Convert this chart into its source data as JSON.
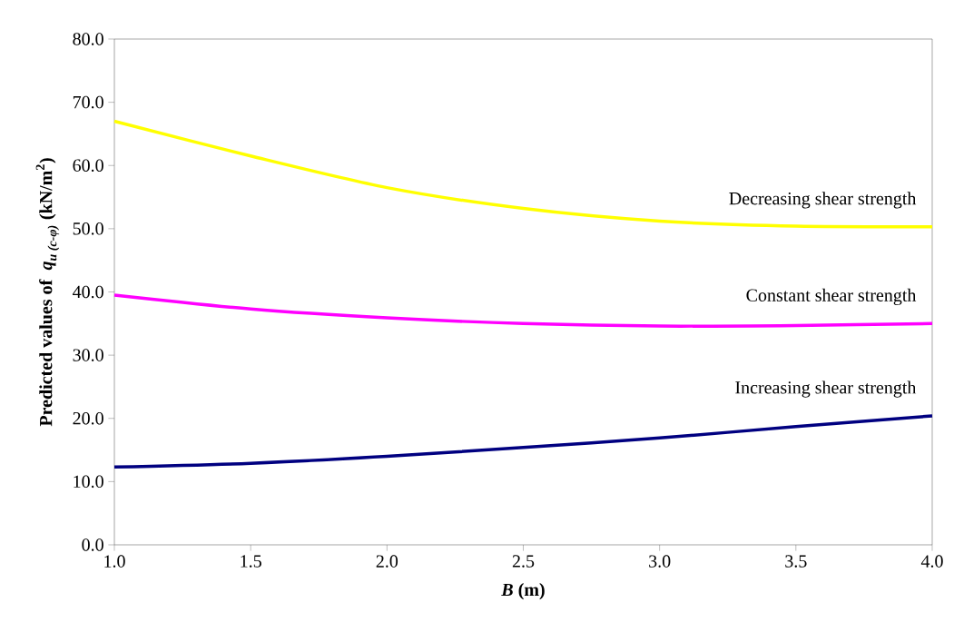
{
  "chart_data": {
    "type": "line",
    "xlabel": "*B* (m)",
    "ylabel": "\\text{Predicted values of }\\; \\text{\\itshape q}_{\\text{\\itshape u (c-φ)}}\\ \\text{(kN/m}^{\\text{2}}\\text{)}",
    "x": [
      1.0,
      1.5,
      2.0,
      2.5,
      3.0,
      3.5,
      4.0
    ],
    "series": [
      {
        "name": "Decreasing shear strength",
        "color": "#ffff00",
        "values": [
          67.0,
          61.5,
          56.5,
          53.2,
          51.2,
          50.4,
          50.3
        ]
      },
      {
        "name": "Constant shear strength",
        "color": "#ff00ff",
        "values": [
          39.5,
          37.3,
          35.9,
          35.0,
          34.6,
          34.7,
          35.0
        ]
      },
      {
        "name": "Increasing shear strength",
        "color": "#000080",
        "values": [
          12.3,
          12.9,
          14.0,
          15.4,
          16.9,
          18.7,
          20.4
        ]
      }
    ],
    "xlim": [
      1.0,
      4.0
    ],
    "ylim": [
      0,
      80
    ],
    "xticks": [
      {
        "value": 1.0,
        "label": "1.0"
      },
      {
        "value": 1.5,
        "label": "1.5"
      },
      {
        "value": 2.0,
        "label": "2.0"
      },
      {
        "value": 2.5,
        "label": "2.5"
      },
      {
        "value": 3.0,
        "label": "3.0"
      },
      {
        "value": 3.5,
        "label": "3.5"
      },
      {
        "value": 4.0,
        "label": "4.0"
      }
    ],
    "yticks": [
      {
        "value": 0,
        "label": "0.0"
      },
      {
        "value": 10,
        "label": "10.0"
      },
      {
        "value": 20,
        "label": "20.0"
      },
      {
        "value": 30,
        "label": "30.0"
      },
      {
        "value": 40,
        "label": "40.0"
      },
      {
        "value": 50,
        "label": "50.0"
      },
      {
        "value": 60,
        "label": "60.0"
      },
      {
        "value": 70,
        "label": "70.0"
      },
      {
        "value": 80,
        "label": "80.0"
      }
    ],
    "marker": "none",
    "line_style": "solid",
    "legend": false,
    "grid": false
  }
}
